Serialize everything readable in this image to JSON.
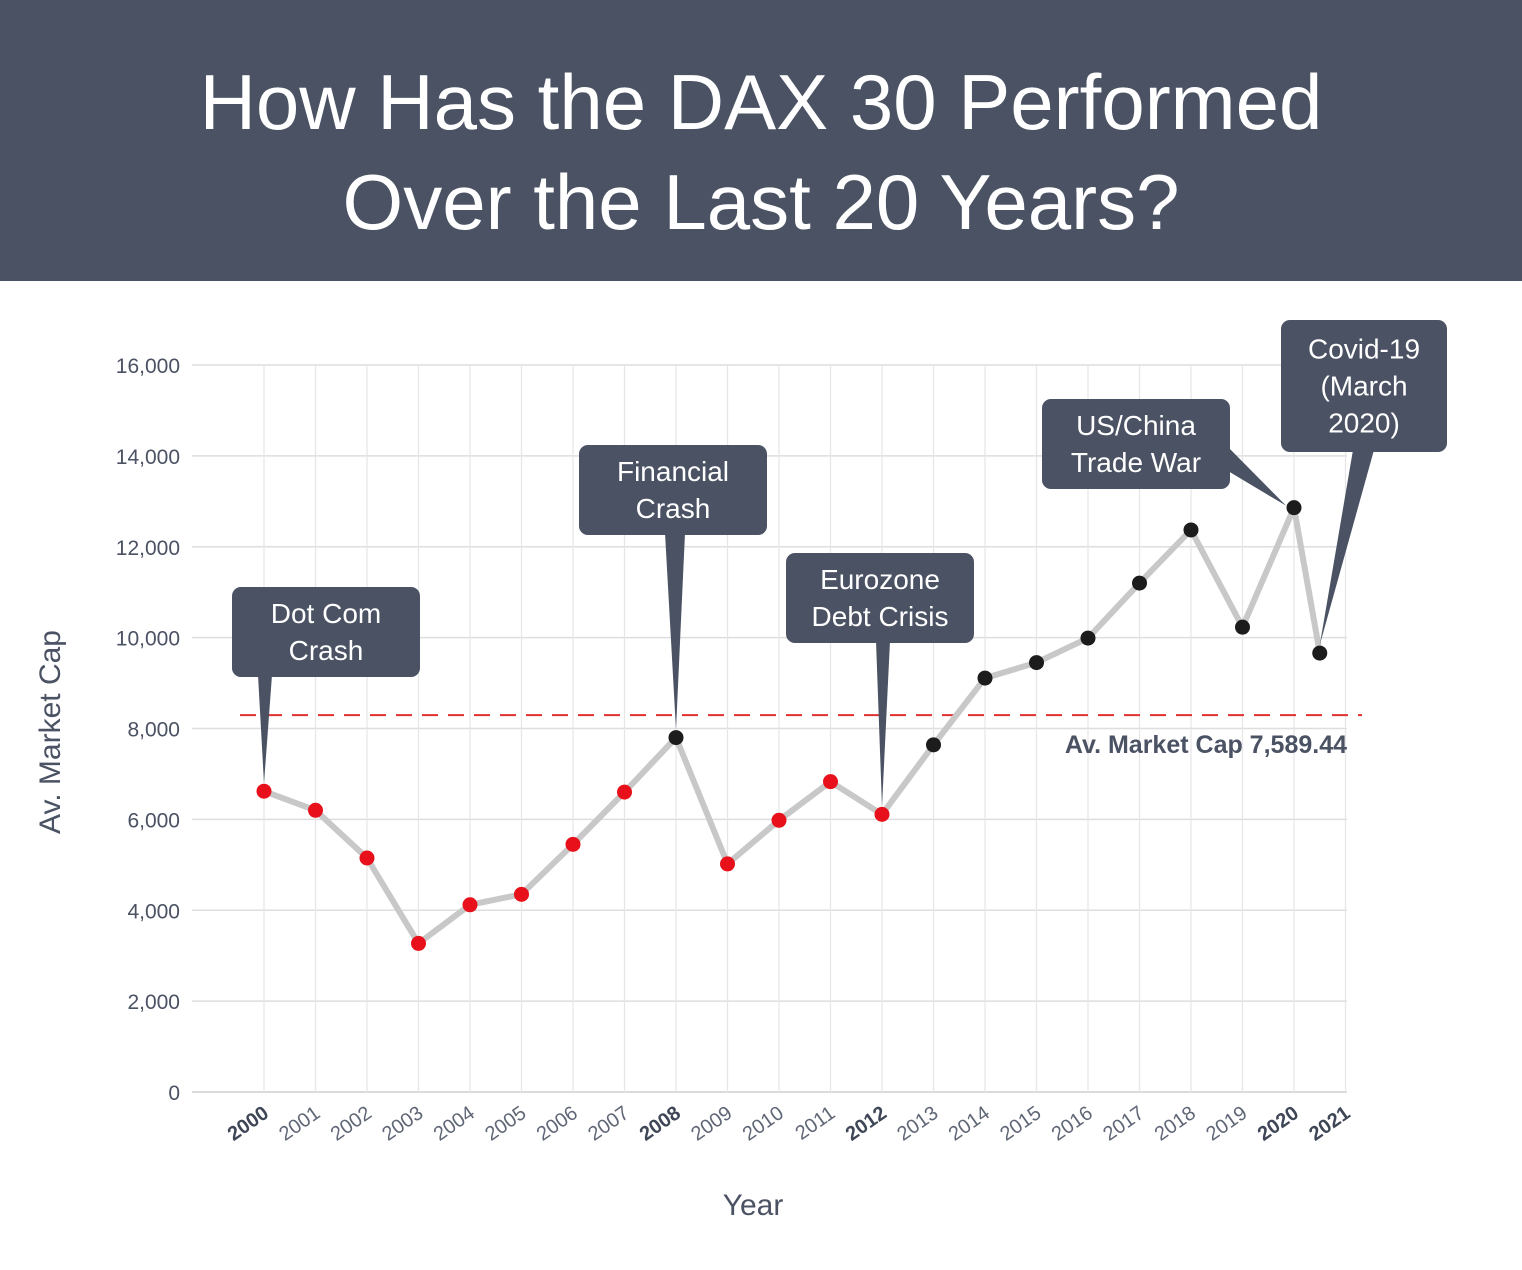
{
  "header": {
    "title_line1": "How Has the DAX 30 Performed",
    "title_line2": "Over the Last 20 Years?"
  },
  "colors": {
    "header_bg": "#4a5263",
    "line": "#c8c8c8",
    "below_avg_point": "#e8111b",
    "above_avg_point": "#1c1c1c",
    "avg_line": "#e03131",
    "callout_bg": "#4a5263"
  },
  "chart_data": {
    "type": "line",
    "title": "How Has the DAX 30 Performed Over the Last 20 Years?",
    "xlabel": "Year",
    "ylabel": "Av. Market Cap",
    "ylim": [
      0,
      16000
    ],
    "y_ticks": [
      0,
      2000,
      4000,
      6000,
      8000,
      10000,
      12000,
      14000,
      16000
    ],
    "y_tick_labels": [
      "0",
      "2,000",
      "4,000",
      "6,000",
      "8,000",
      "10,000",
      "12,000",
      "14,000",
      "16,000"
    ],
    "categories": [
      "2000",
      "2001",
      "2002",
      "2003",
      "2004",
      "2005",
      "2006",
      "2007",
      "2008",
      "2009",
      "2010",
      "2011",
      "2012",
      "2013",
      "2014",
      "2015",
      "2016",
      "2017",
      "2018",
      "2019",
      "2020",
      "2021"
    ],
    "bold_categories": [
      "2000",
      "2008",
      "2012",
      "2020",
      "2021"
    ],
    "series": [
      {
        "name": "Av. Market Cap",
        "points": [
          {
            "year": "2000",
            "value": 6620
          },
          {
            "year": "2001",
            "value": 6200
          },
          {
            "year": "2002",
            "value": 5150
          },
          {
            "year": "2003",
            "value": 3270
          },
          {
            "year": "2004",
            "value": 4120
          },
          {
            "year": "2005",
            "value": 4350
          },
          {
            "year": "2006",
            "value": 5450
          },
          {
            "year": "2007",
            "value": 6600
          },
          {
            "year": "2008",
            "value": 7800
          },
          {
            "year": "2009",
            "value": 5020
          },
          {
            "year": "2010",
            "value": 5980
          },
          {
            "year": "2011",
            "value": 6830
          },
          {
            "year": "2012",
            "value": 6110
          },
          {
            "year": "2013",
            "value": 7640
          },
          {
            "year": "2014",
            "value": 9110
          },
          {
            "year": "2015",
            "value": 9450
          },
          {
            "year": "2016",
            "value": 9990
          },
          {
            "year": "2017",
            "value": 11200
          },
          {
            "year": "2018",
            "value": 12370
          },
          {
            "year": "2019",
            "value": 10230
          },
          {
            "year": "2020",
            "value": 12860
          },
          {
            "year": "2020.5",
            "value": 9660
          }
        ]
      }
    ],
    "average": {
      "value": 7589.44,
      "label": "Av. Market Cap 7,589.44"
    },
    "annotations": [
      {
        "lines": [
          "Dot Com",
          "Crash"
        ],
        "target_year": "2000"
      },
      {
        "lines": [
          "Financial",
          "Crash"
        ],
        "target_year": "2008"
      },
      {
        "lines": [
          "Eurozone",
          "Debt Crisis"
        ],
        "target_year": "2012"
      },
      {
        "lines": [
          "US/China",
          "Trade War"
        ],
        "target_year": "2020"
      },
      {
        "lines": [
          "Covid-19",
          "(March",
          "2020)"
        ],
        "target_year": "2020.5"
      }
    ]
  }
}
